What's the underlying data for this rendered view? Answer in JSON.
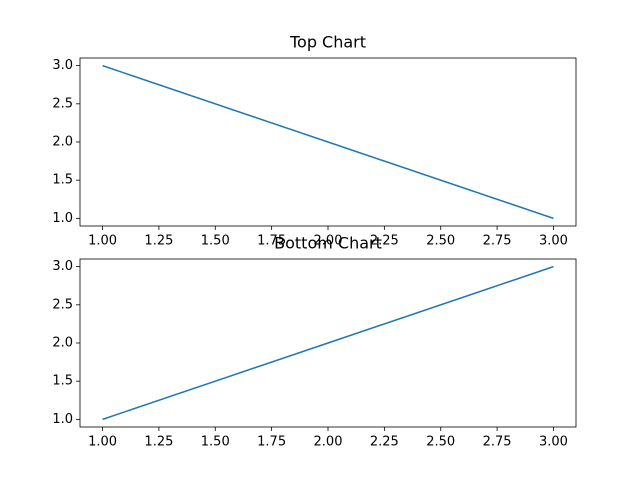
{
  "chart_data": [
    {
      "type": "line",
      "title": "Top Chart",
      "x": [
        1,
        2,
        3
      ],
      "values": [
        3,
        2,
        1
      ],
      "color": "#1f77b4",
      "xlim": [
        0.9,
        3.1
      ],
      "xticks": [
        {
          "value": 1,
          "label": "1.00"
        },
        {
          "value": 1.25,
          "label": "1.25"
        },
        {
          "value": 1.5,
          "label": "1.50"
        },
        {
          "value": 1.75,
          "label": "1.75"
        },
        {
          "value": 2,
          "label": "2.00"
        },
        {
          "value": 2.25,
          "label": "2.25"
        },
        {
          "value": 2.5,
          "label": "2.50"
        },
        {
          "value": 2.75,
          "label": "2.75"
        },
        {
          "value": 3,
          "label": "3.00"
        }
      ],
      "ylim": [
        0.9,
        3.1
      ],
      "yticks": [
        {
          "value": 1,
          "label": "1.0"
        },
        {
          "value": 1.5,
          "label": "1.5"
        },
        {
          "value": 2,
          "label": "2.0"
        },
        {
          "value": 2.5,
          "label": "2.5"
        },
        {
          "value": 3,
          "label": "3.0"
        }
      ]
    },
    {
      "type": "line",
      "title": "Bottom Chart",
      "x": [
        1,
        2,
        3
      ],
      "values": [
        1,
        2,
        3
      ],
      "color": "#1f77b4",
      "xlim": [
        0.9,
        3.1
      ],
      "xticks": [
        {
          "value": 1,
          "label": "1.00"
        },
        {
          "value": 1.25,
          "label": "1.25"
        },
        {
          "value": 1.5,
          "label": "1.50"
        },
        {
          "value": 1.75,
          "label": "1.75"
        },
        {
          "value": 2,
          "label": "2.00"
        },
        {
          "value": 2.25,
          "label": "2.25"
        },
        {
          "value": 2.5,
          "label": "2.50"
        },
        {
          "value": 2.75,
          "label": "2.75"
        },
        {
          "value": 3,
          "label": "3.00"
        }
      ],
      "ylim": [
        0.9,
        3.1
      ],
      "yticks": [
        {
          "value": 1,
          "label": "1.0"
        },
        {
          "value": 1.5,
          "label": "1.5"
        },
        {
          "value": 2,
          "label": "2.0"
        },
        {
          "value": 2.5,
          "label": "2.5"
        },
        {
          "value": 3,
          "label": "3.0"
        }
      ]
    }
  ]
}
